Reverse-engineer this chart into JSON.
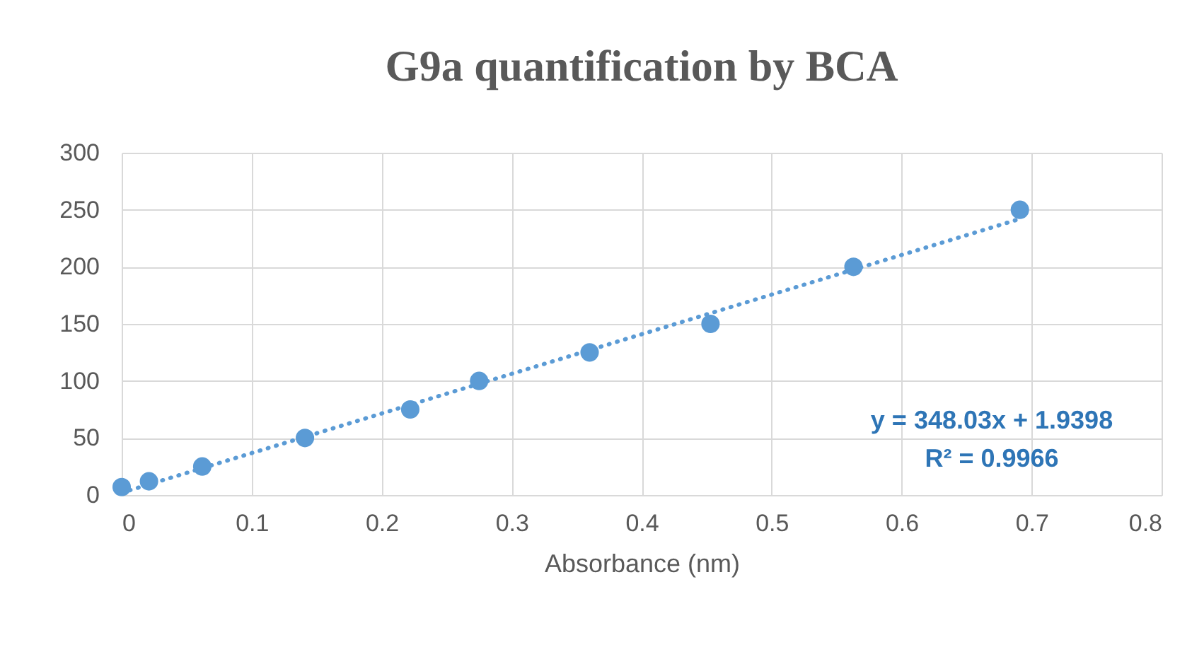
{
  "chart_data": {
    "type": "scatter",
    "title": "G9a quantification by BCA",
    "xlabel": "Absorbance (nm)",
    "x": [
      0,
      0.021,
      0.062,
      0.141,
      0.222,
      0.275,
      0.36,
      0.453,
      0.563,
      0.691
    ],
    "series": [
      {
        "color": "#5b9bd5",
        "values": [
          7,
          12,
          25,
          50,
          75,
          100,
          125,
          150,
          200,
          250
        ],
        "marker": "circle"
      },
      {
        "type": "line",
        "color": "#5b9bd5",
        "x": [
          0,
          0.691
        ],
        "values": [
          2,
          242
        ],
        "line_style": "dotted",
        "marker": "none"
      }
    ],
    "annotations": [
      "y = 348.03x + 1.9398",
      "R² = 0.9966"
    ],
    "xlim": [
      0,
      0.8
    ],
    "xticks": [
      0,
      0.1,
      0.2,
      0.3,
      0.4,
      0.5,
      0.6,
      0.7,
      0.8
    ],
    "ylim": [
      0,
      300
    ],
    "yticks": [
      0,
      50,
      100,
      150,
      200,
      250,
      300
    ],
    "grid": true
  }
}
